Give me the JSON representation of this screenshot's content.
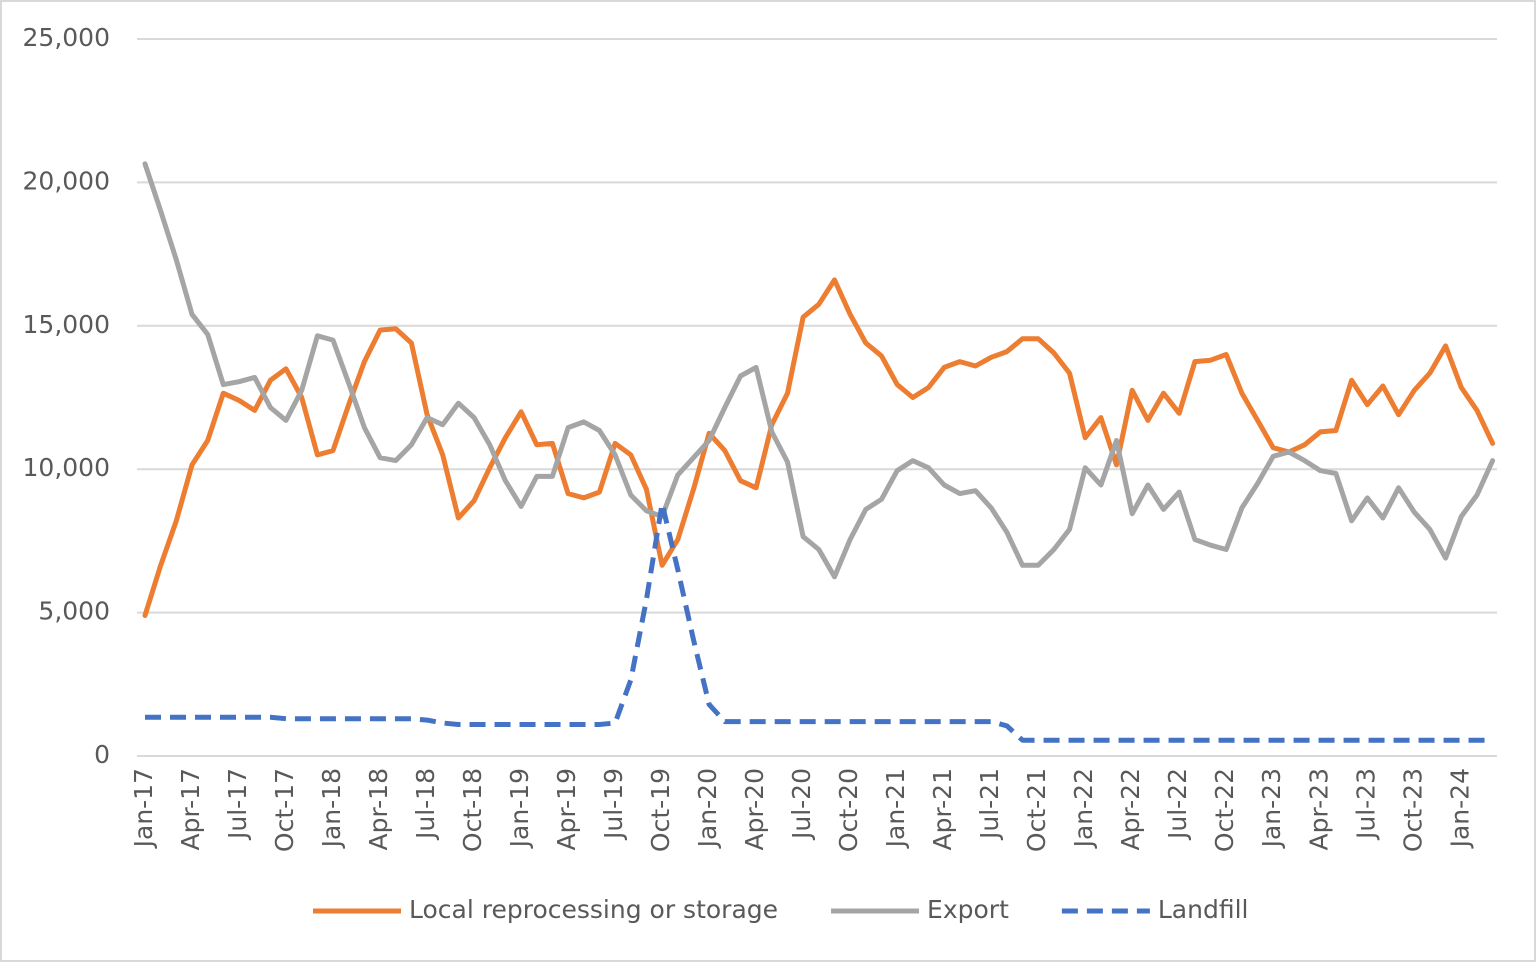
{
  "chart_data": {
    "type": "line",
    "categories": [
      "Jan-17",
      null,
      null,
      "Apr-17",
      null,
      null,
      "Jul-17",
      null,
      null,
      "Oct-17",
      null,
      null,
      "Jan-18",
      null,
      null,
      "Apr-18",
      null,
      null,
      "Jul-18",
      null,
      null,
      "Oct-18",
      null,
      null,
      "Jan-19",
      null,
      null,
      "Apr-19",
      null,
      null,
      "Jul-19",
      null,
      null,
      "Oct-19",
      null,
      null,
      "Jan-20",
      null,
      null,
      "Apr-20",
      null,
      null,
      "Jul-20",
      null,
      null,
      "Oct-20",
      null,
      null,
      "Jan-21",
      null,
      null,
      "Apr-21",
      null,
      null,
      "Jul-21",
      null,
      null,
      "Oct-21",
      null,
      null,
      "Jan-22",
      null,
      null,
      "Apr-22",
      null,
      null,
      "Jul-22",
      null,
      null,
      "Oct-22",
      null,
      null,
      "Jan-23",
      null,
      null,
      "Apr-23",
      null,
      null,
      "Jul-23",
      null,
      null,
      "Oct-23",
      null,
      null,
      "Jan-24",
      null,
      null
    ],
    "series": [
      {
        "name": "Local reprocessing or storage",
        "color": "#ED7D31",
        "values": [
          4900,
          6650,
          8200,
          10150,
          11000,
          12650,
          12400,
          12050,
          13100,
          13500,
          12500,
          10500,
          10650,
          12250,
          13750,
          14850,
          14900,
          14400,
          11900,
          10500,
          8300,
          8900,
          10050,
          11100,
          12000,
          10850,
          10900,
          9150,
          9000,
          9200,
          10900,
          10500,
          9300,
          6650,
          7550,
          9300,
          11250,
          10650,
          9600,
          9350,
          11550,
          12650,
          15300,
          15750,
          16600,
          15400,
          14400,
          13950,
          12950,
          12500,
          12850,
          13550,
          13750,
          13600,
          13900,
          14100,
          14550,
          14550,
          14050,
          13350,
          11100,
          11800,
          10150,
          12750,
          11700,
          12650,
          11950,
          13750,
          13800,
          14000,
          12650,
          11700,
          10750,
          10600,
          10850,
          11300,
          11350,
          13100,
          12250,
          12900,
          11900,
          12750,
          13350,
          14300,
          12850,
          12050,
          10900
        ]
      },
      {
        "name": "Export",
        "color": "#A5A5A5",
        "values": [
          20650,
          19000,
          17300,
          15400,
          14700,
          12950,
          13050,
          13200,
          12150,
          11700,
          12750,
          14650,
          14500,
          13000,
          11450,
          10400,
          10300,
          10850,
          11800,
          11550,
          12300,
          11800,
          10850,
          9600,
          8700,
          9750,
          9750,
          11450,
          11650,
          11350,
          10500,
          9100,
          8550,
          8350,
          9800,
          10400,
          11000,
          12150,
          13250,
          13550,
          11300,
          10250,
          7650,
          7200,
          6250,
          7550,
          8600,
          8950,
          9950,
          10300,
          10050,
          9450,
          9150,
          9250,
          8650,
          7800,
          6650,
          6650,
          7200,
          7900,
          10050,
          9450,
          11000,
          8450,
          9450,
          8600,
          9200,
          7550,
          7350,
          7200,
          8650,
          9500,
          10450,
          10600,
          10300,
          9950,
          9850,
          8200,
          9000,
          8300,
          9350,
          8500,
          7900,
          6900,
          8350,
          9100,
          10300
        ]
      },
      {
        "name": "Landfill",
        "color": "#4472C4",
        "dashed": true,
        "values": [
          1350,
          1350,
          1350,
          1350,
          1350,
          1350,
          1350,
          1350,
          1350,
          1300,
          1300,
          1300,
          1300,
          1300,
          1300,
          1300,
          1300,
          1300,
          1250,
          1150,
          1100,
          1100,
          1100,
          1100,
          1100,
          1100,
          1100,
          1100,
          1100,
          1100,
          1150,
          2650,
          5450,
          8800,
          6500,
          4050,
          1800,
          1200,
          1200,
          1200,
          1200,
          1200,
          1200,
          1200,
          1200,
          1200,
          1200,
          1200,
          1200,
          1200,
          1200,
          1200,
          1200,
          1200,
          1200,
          1050,
          550,
          550,
          550,
          550,
          550,
          550,
          550,
          550,
          550,
          550,
          550,
          550,
          550,
          550,
          550,
          550,
          550,
          550,
          550,
          550,
          550,
          550,
          550,
          550,
          550,
          550,
          550,
          550,
          550,
          550,
          550
        ]
      }
    ],
    "ylim": [
      0,
      25000
    ],
    "yticks": [
      0,
      {
        "value": 5000,
        "label": "5,000"
      },
      {
        "value": 10000,
        "label": "10,000"
      },
      {
        "value": 15000,
        "label": "15,000"
      },
      {
        "value": 20000,
        "label": "20,000"
      },
      {
        "value": 25000,
        "label": "25,000"
      }
    ],
    "grid": true,
    "legend": "bottom"
  }
}
